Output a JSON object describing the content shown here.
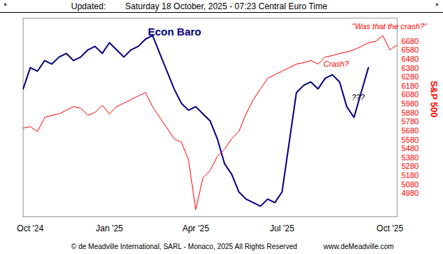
{
  "header": {
    "left_mark": "*",
    "label": "Updated:",
    "timestamp": "Saturday 18 October, 2025 - 07:23 Central Euro Time",
    "right_mark": "*"
  },
  "chart_data": {
    "type": "line",
    "title": "Econ Baro",
    "ylabel": "S&P 500",
    "x": [
      0,
      1,
      2,
      3,
      4,
      5,
      6,
      7,
      8,
      9,
      10,
      11,
      12,
      13,
      14,
      15,
      16,
      17,
      18,
      19,
      20,
      21,
      22,
      23,
      24,
      25,
      26,
      27,
      28,
      29,
      30,
      31,
      32,
      33,
      34,
      35,
      36,
      37,
      38,
      39,
      40,
      41,
      42,
      43,
      44,
      45,
      46,
      47,
      48,
      49,
      50,
      51,
      52
    ],
    "xlim": [
      0,
      52
    ],
    "xticks": [
      {
        "value": 1,
        "label": "Oct '24"
      },
      {
        "value": 12,
        "label": "Jan '25"
      },
      {
        "value": 24,
        "label": "Apr '25"
      },
      {
        "value": 36,
        "label": "Jul '25"
      },
      {
        "value": 51,
        "label": "Oct '25"
      }
    ],
    "ylim": [
      4720,
      6940
    ],
    "yticks": [
      4980,
      5080,
      5180,
      5280,
      5380,
      5480,
      5580,
      5680,
      5780,
      5880,
      5980,
      6080,
      6180,
      6280,
      6380,
      6480,
      6580,
      6680
    ],
    "grid": false,
    "series": [
      {
        "name": "Econ Baro",
        "color": "#000080",
        "values": [
          6148,
          6386,
          6347,
          6466,
          6426,
          6505,
          6545,
          6466,
          6505,
          6585,
          6624,
          6545,
          6664,
          6585,
          6505,
          6585,
          6624,
          6704,
          6744,
          6545,
          6347,
          6148,
          5989,
          5910,
          5950,
          5870,
          5791,
          5592,
          5314,
          5195,
          4997,
          4917,
          4878,
          4838,
          4917,
          4878,
          4997,
          5553,
          6108,
          6188,
          6227,
          6148,
          6267,
          6307,
          6227,
          5950,
          5830,
          6108,
          6386,
          null,
          null,
          null,
          null
        ]
      },
      {
        "name": "S&P 500",
        "color": "#ff0000",
        "values": [
          5711,
          5727,
          5672,
          5830,
          5854,
          5870,
          5910,
          5950,
          5934,
          5854,
          5886,
          5965,
          5870,
          5950,
          5989,
          6029,
          6069,
          6109,
          5950,
          5830,
          5711,
          5592,
          5553,
          5354,
          4798,
          5156,
          5235,
          5394,
          5473,
          5592,
          5672,
          5870,
          6029,
          6148,
          6267,
          6307,
          6347,
          6386,
          6426,
          6442,
          6466,
          6426,
          6505,
          6521,
          6545,
          6561,
          6585,
          6624,
          6664,
          6680,
          6744,
          6585,
          6640
        ]
      }
    ],
    "annotations": [
      {
        "text": "\"Was that the crash?\"",
        "color": "#ff0000"
      },
      {
        "text": "Crash?",
        "color": "#ff0000"
      },
      {
        "text": "???",
        "color": "#000000"
      }
    ]
  },
  "footer": [
    "© de Meadville International, SARL - Monaco, 2025",
    "All Rights Reserved",
    "www.deMeadville.com"
  ]
}
